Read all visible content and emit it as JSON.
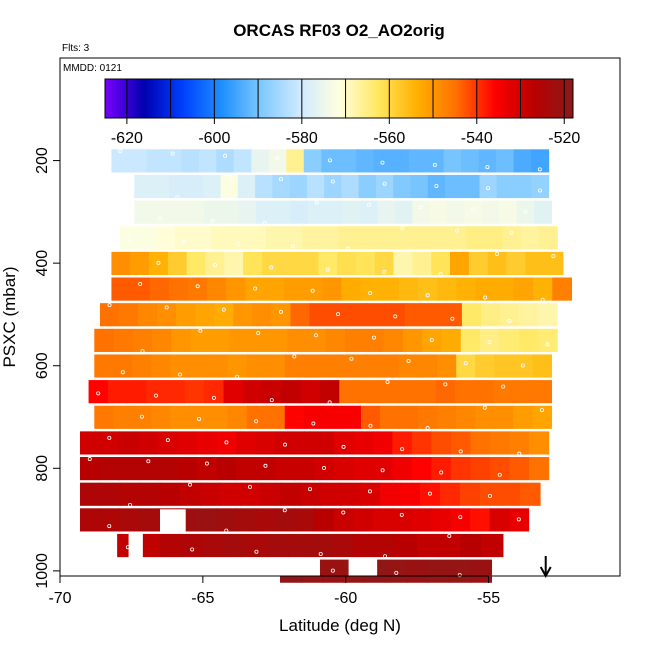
{
  "chart_data": {
    "type": "heatmap",
    "title": "ORCAS RF03 O2_AO2orig",
    "xlabel": "Latitude (deg N)",
    "ylabel": "PSXC (mbar)",
    "xlim": [
      -70,
      -50.4
    ],
    "ylim": [
      1010,
      0
    ],
    "xticks": [
      "-70",
      "-65",
      "-60",
      "-55"
    ],
    "yticks": [
      "200",
      "400",
      "600",
      "800",
      "1000"
    ],
    "annotations": {
      "flights": "Flts: 3",
      "date": "MMDD: 0121"
    },
    "colorbar": {
      "min": -625,
      "max": -518,
      "ticks": [
        "-620",
        "-600",
        "-580",
        "-560",
        "-540",
        "-520"
      ],
      "colors": [
        "#7a00ff",
        "#0000b0",
        "#0040ff",
        "#1e90ff",
        "#7ec8ff",
        "#cfeaff",
        "#ffffe0",
        "#ffe860",
        "#ffb000",
        "#ff7000",
        "#ff0000",
        "#b80000",
        "#8b1a1a"
      ]
    },
    "pressure_levels": [
      {
        "p": 200,
        "lat_min": -68.2,
        "lat_max": -52.9,
        "values": [
          -581,
          -581,
          -582,
          -582,
          -583,
          -582,
          -584,
          -582,
          -576,
          -574,
          -566,
          -588,
          -591,
          -591,
          -592,
          -593,
          -593,
          -592,
          -592,
          -590,
          -591,
          -592,
          -591,
          -594,
          -595
        ]
      },
      {
        "p": 250,
        "lat_min": -67.4,
        "lat_max": -52.9,
        "values": [
          -578,
          -578,
          -579,
          -579,
          -578,
          -572,
          -578,
          -583,
          -585,
          -586,
          -583,
          -586,
          -584,
          -588,
          -586,
          -589,
          -590,
          -592,
          -591,
          -591,
          -586,
          -588,
          -588,
          -587
        ]
      },
      {
        "p": 300,
        "lat_min": -67.4,
        "lat_max": -52.8,
        "values": [
          -574,
          -574,
          -574,
          -574,
          -575,
          -575,
          -576,
          -578,
          -578,
          -579,
          -578,
          -578,
          -577,
          -578,
          -576,
          -577,
          -574,
          -573,
          -574,
          -573,
          -574,
          -573,
          -575,
          -577
        ]
      },
      {
        "p": 350,
        "lat_min": -67.9,
        "lat_max": -52.6,
        "values": [
          -572,
          -572,
          -571,
          -570,
          -570,
          -569,
          -569,
          -569,
          -568,
          -568,
          -567,
          -567,
          -566,
          -566,
          -566,
          -566,
          -566,
          -566,
          -566,
          -565,
          -565,
          -566,
          -567,
          -566
        ]
      },
      {
        "p": 400,
        "lat_min": -68.2,
        "lat_max": -52.4,
        "values": [
          -549,
          -551,
          -554,
          -558,
          -563,
          -566,
          -568,
          -562,
          -560,
          -560,
          -560,
          -563,
          -561,
          -562,
          -560,
          -568,
          -566,
          -562,
          -552,
          -558,
          -556,
          -558,
          -556,
          -556
        ]
      },
      {
        "p": 450,
        "lat_min": -68.2,
        "lat_max": -52.1,
        "values": [
          -543,
          -543,
          -544,
          -545,
          -546,
          -548,
          -550,
          -552,
          -552,
          -551,
          -551,
          -550,
          -553,
          -554,
          -554,
          -555,
          -556,
          -555,
          -554,
          -553,
          -553,
          -552,
          -554,
          -547
        ]
      },
      {
        "p": 500,
        "lat_min": -68.6,
        "lat_max": -52.6,
        "values": [
          -545,
          -546,
          -548,
          -549,
          -551,
          -552,
          -553,
          -550,
          -549,
          -550,
          -544,
          -542,
          -542,
          -542,
          -542,
          -542,
          -543,
          -543,
          -543,
          -563,
          -565,
          -566,
          -567,
          -568
        ]
      },
      {
        "p": 550,
        "lat_min": -68.8,
        "lat_max": -52.6,
        "values": [
          -545,
          -546,
          -547,
          -548,
          -550,
          -551,
          -551,
          -550,
          -550,
          -550,
          -549,
          -549,
          -548,
          -547,
          -547,
          -548,
          -550,
          -552,
          -553,
          -563,
          -565,
          -564,
          -563,
          -564
        ]
      },
      {
        "p": 600,
        "lat_min": -68.8,
        "lat_max": -52.8,
        "values": [
          -546,
          -546,
          -547,
          -548,
          -549,
          -549,
          -549,
          -550,
          -549,
          -549,
          -547,
          -547,
          -547,
          -547,
          -547,
          -547,
          -548,
          -548,
          -549,
          -560,
          -558,
          -557,
          -557,
          -556
        ]
      },
      {
        "p": 650,
        "lat_min": -69.0,
        "lat_max": -52.8,
        "values": [
          -536,
          -538,
          -538,
          -539,
          -539,
          -540,
          -539,
          -532,
          -530,
          -529,
          -528,
          -530,
          -528,
          -545,
          -545,
          -545,
          -545,
          -545,
          -544,
          -545,
          -545,
          -546,
          -546,
          -546
        ]
      },
      {
        "p": 700,
        "lat_min": -68.8,
        "lat_max": -52.8,
        "values": [
          -546,
          -547,
          -547,
          -548,
          -549,
          -549,
          -549,
          -548,
          -545,
          -545,
          -536,
          -535,
          -535,
          -535,
          -543,
          -545,
          -545,
          -546,
          -547,
          -548,
          -549,
          -549,
          -551,
          -552
        ]
      },
      {
        "p": 750,
        "lat_min": -69.3,
        "lat_max": -52.9,
        "values": [
          -530,
          -530,
          -529,
          -530,
          -531,
          -532,
          -533,
          -534,
          -532,
          -531,
          -530,
          -530,
          -530,
          -532,
          -533,
          -534,
          -538,
          -540,
          -542,
          -543,
          -545,
          -546,
          -547,
          -549
        ]
      },
      {
        "p": 800,
        "lat_min": -69.3,
        "lat_max": -52.9,
        "values": [
          -527,
          -526,
          -526,
          -526,
          -526,
          -527,
          -528,
          -527,
          -528,
          -528,
          -529,
          -529,
          -530,
          -531,
          -532,
          -532,
          -534,
          -536,
          -538,
          -540,
          -541,
          -542,
          -543,
          -545
        ]
      },
      {
        "p": 850,
        "lat_min": -69.3,
        "lat_max": -53.2,
        "values": [
          -525,
          -525,
          -526,
          -526,
          -527,
          -528,
          -529,
          -530,
          -530,
          -529,
          -528,
          -529,
          -530,
          -530,
          -531,
          -534,
          -535,
          -537,
          -539,
          -541,
          -542,
          -542,
          -543
        ]
      },
      {
        "p": 900,
        "lat_min": -69.3,
        "lat_max": -53.6,
        "values": [
          -525,
          -525,
          -524,
          -523,
          -523,
          -522,
          -521,
          -522,
          -523,
          -524,
          -523,
          -524,
          -527,
          -529,
          -530,
          -531,
          -531,
          -532,
          -533,
          -535,
          -537,
          -531,
          -533
        ]
      },
      {
        "p": 950,
        "lat_min": -68.0,
        "lat_max": -54.5,
        "values": [
          -528,
          -528,
          -526,
          -525,
          -524,
          -523,
          -524,
          -523,
          -523,
          -523,
          -524,
          -526,
          -526,
          -527,
          -528,
          -528,
          -527,
          -528
        ]
      },
      {
        "p": 1000,
        "lat_min": -62.3,
        "lat_max": -54.9,
        "values": [
          -519,
          -520,
          -521,
          -520,
          -519,
          -520,
          -521,
          -520,
          -520,
          -521
        ]
      }
    ],
    "missing_blocks": [
      {
        "lat_min": -66.5,
        "lat_max": -65.6,
        "p_min": 880,
        "p_max": 925
      },
      {
        "lat_min": -67.6,
        "lat_max": -67.1,
        "p_min": 925,
        "p_max": 975
      },
      {
        "lat_min": -59.9,
        "lat_max": -58.9,
        "p_min": 975,
        "p_max": 1010
      },
      {
        "lat_min": -62.3,
        "lat_max": -60.9,
        "p_min": 975,
        "p_max": 1010
      }
    ],
    "arrow_marker": {
      "lat": -53.0
    }
  }
}
